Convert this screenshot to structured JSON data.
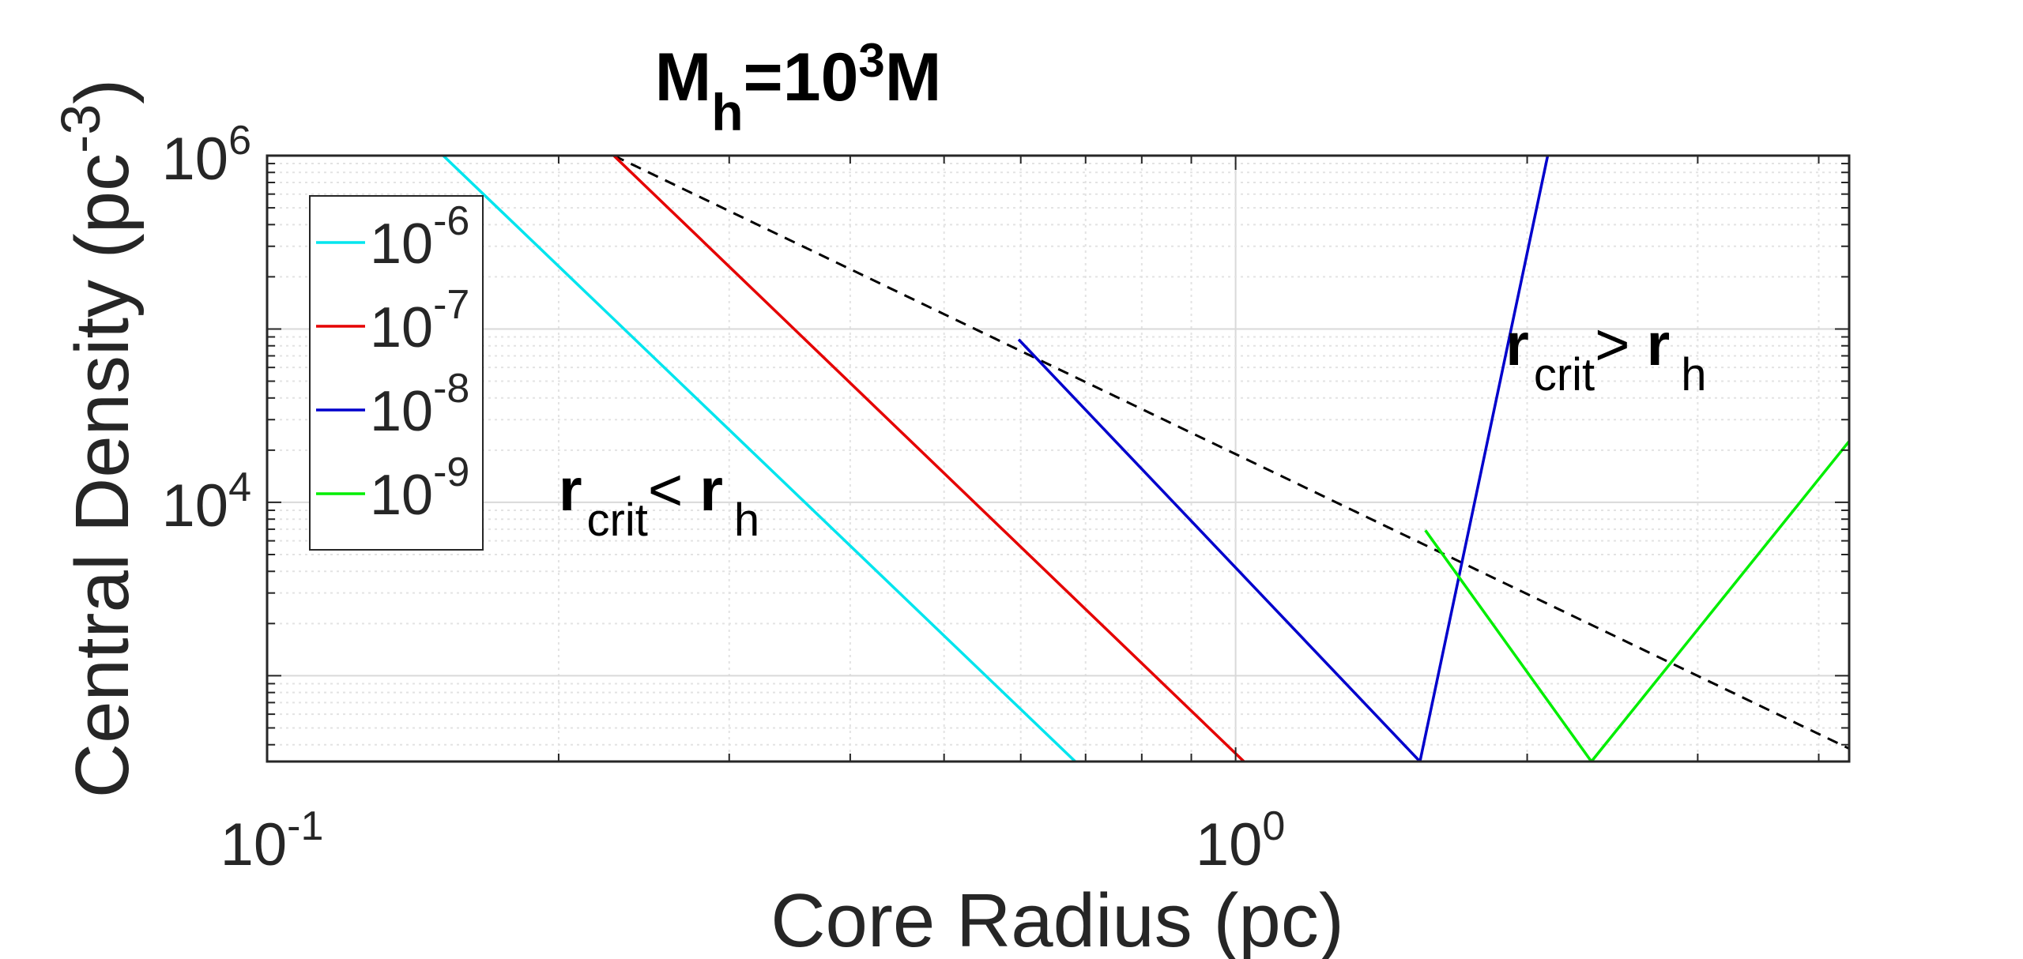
{
  "chart_data": {
    "type": "line",
    "title": {
      "main": "M",
      "sub": "h",
      "mid": "=10",
      "sup": "3",
      "tail": "M"
    },
    "xlabel": "Core Radius (pc)",
    "ylabel": {
      "main": "Central Density (pc",
      "sup": "-3",
      "close": ")"
    },
    "xscale": "log",
    "yscale": "log",
    "xlim": [
      0.1,
      4.3
    ],
    "ylim": [
      320,
      1000000
    ],
    "xticks": [
      {
        "value": 0.1,
        "base": "10",
        "exp": "-1"
      },
      {
        "value": 1,
        "base": "10",
        "exp": "0"
      }
    ],
    "yticks": [
      {
        "value": 10000,
        "base": "10",
        "exp": "4"
      },
      {
        "value": 1000000,
        "base": "10",
        "exp": "6"
      }
    ],
    "grid": true,
    "minor_grid": true,
    "legend_position": "top-left",
    "series": [
      {
        "name": {
          "base": "10",
          "exp": "-6"
        },
        "color": "#00e5ee",
        "x": [
          0.152,
          0.683
        ],
        "y": [
          1000000,
          320
        ]
      },
      {
        "name": {
          "base": "10",
          "exp": "-7"
        },
        "color": "#e50000",
        "x": [
          0.228,
          1.02
        ],
        "y": [
          1000000,
          320
        ]
      },
      {
        "name": {
          "base": "10",
          "exp": "-8"
        },
        "color": "#0000cc",
        "x": [
          0.597,
          1.55,
          2.1
        ],
        "y": [
          87000,
          320,
          1000000
        ]
      },
      {
        "name": {
          "base": "10",
          "exp": "-9"
        },
        "color": "#00ee00",
        "x": [
          1.57,
          2.33,
          4.3
        ],
        "y": [
          6900,
          320,
          22500
        ]
      }
    ],
    "reference_line": {
      "style": "dashed",
      "color": "#000000",
      "x": [
        0.228,
        4.3
      ],
      "y": [
        1000000,
        380
      ]
    },
    "annotations": [
      {
        "parts": [
          "r",
          "crit",
          "< ",
          "r",
          "h"
        ],
        "x": 0.2,
        "y": 9000
      },
      {
        "parts": [
          "r",
          "crit",
          "> ",
          "r",
          "h"
        ],
        "x": 1.9,
        "y": 62000
      }
    ]
  }
}
